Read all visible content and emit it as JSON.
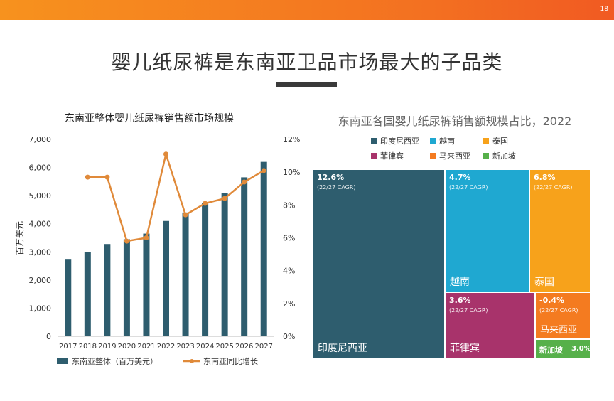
{
  "page": {
    "number": "18",
    "title": "婴儿纸尿裤是东南亚卫品市场最大的子品类"
  },
  "chart_data": [
    {
      "type": "bar",
      "title": "东南亚整体婴儿纸尿裤销售额市场规模",
      "ylabel": "百万美元",
      "categories": [
        "2017",
        "2018",
        "2019",
        "2020",
        "2021",
        "2022",
        "2023",
        "2024",
        "2025",
        "2026",
        "2027"
      ],
      "ylim": [
        0,
        7000
      ],
      "yticks": [
        "0",
        "1,000",
        "2,000",
        "3,000",
        "4,000",
        "5,000",
        "6,000",
        "7,000"
      ],
      "y2lim": [
        0,
        12
      ],
      "y2ticks": [
        "0%",
        "2%",
        "4%",
        "6%",
        "8%",
        "10%",
        "12%"
      ],
      "series": [
        {
          "name": "东南亚整体（百万美元）",
          "kind": "bar",
          "color": "#2e5d6e",
          "values": [
            2750,
            3000,
            3280,
            3450,
            3650,
            4100,
            4400,
            4750,
            5100,
            5650,
            6200
          ]
        },
        {
          "name": "东南亚同比增长",
          "kind": "line",
          "axis": "right",
          "color": "#e08a3a",
          "values": [
            null,
            9.7,
            9.7,
            5.8,
            6.0,
            11.1,
            7.4,
            8.1,
            8.4,
            9.4,
            10.1
          ]
        }
      ]
    },
    {
      "type": "treemap",
      "title": "东南亚各国婴儿纸尿裤销售额规模占比，2022",
      "legend": [
        {
          "name": "印度尼西亚",
          "color": "#2e5d6e"
        },
        {
          "name": "越南",
          "color": "#1fa8d1"
        },
        {
          "name": "泰国",
          "color": "#f7a21b"
        },
        {
          "name": "菲律宾",
          "color": "#a8336b"
        },
        {
          "name": "马来西亚",
          "color": "#f47b20"
        },
        {
          "name": "新加坡",
          "color": "#56b04a"
        }
      ],
      "tiles": [
        {
          "name": "印度尼西亚",
          "growth": "12.6%",
          "note": "(22/27 CAGR)",
          "color": "#2e5d6e"
        },
        {
          "name": "越南",
          "growth": "4.7%",
          "note": "(22/27 CAGR)",
          "color": "#1fa8d1"
        },
        {
          "name": "泰国",
          "growth": "6.8%",
          "note": "(22/27 CAGR)",
          "color": "#f7a21b"
        },
        {
          "name": "菲律宾",
          "growth": "3.6%",
          "note": "(22/27 CAGR)",
          "color": "#a8336b"
        },
        {
          "name": "马来西亚",
          "growth": "-0.4%",
          "note": "(22/27 CAGR)",
          "color": "#f47b20"
        },
        {
          "name": "新加坡",
          "growth": "3.0%",
          "color": "#56b04a"
        }
      ]
    }
  ]
}
